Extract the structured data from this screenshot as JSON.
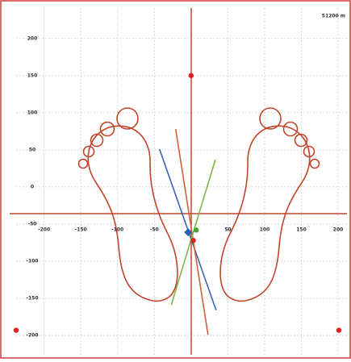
{
  "chart_data": {
    "type": "scatter",
    "corner_label": "51200 m",
    "xlim": [
      -238,
      212
    ],
    "ylim": [
      -226,
      241
    ],
    "xticks": [
      -200,
      -150,
      -100,
      -50,
      50,
      100,
      150,
      200
    ],
    "yticks": [
      200,
      150,
      100,
      50,
      0,
      -50,
      -100,
      -150,
      -200
    ],
    "grid": true,
    "series": [
      {
        "marker": "line",
        "color": "#3a66b5",
        "x": [
          -43,
          34
        ],
        "values": [
          51,
          -166
        ]
      },
      {
        "marker": "line",
        "color": "#d0603a",
        "x": [
          -21,
          23
        ],
        "values": [
          78,
          -199
        ]
      },
      {
        "marker": "line",
        "color": "#7ab648",
        "x": [
          33,
          -27
        ],
        "values": [
          37,
          -159
        ]
      },
      {
        "marker": "dot",
        "color": "#e02020",
        "x": [
          0,
          -238,
          201,
          3
        ],
        "values": [
          150,
          -193,
          -193,
          -72
        ]
      },
      {
        "marker": "diamond",
        "color": "#2f5faa",
        "x": [
          -4
        ],
        "values": [
          -61
        ]
      },
      {
        "marker": "dot",
        "color": "#4aa23a",
        "x": [
          7
        ],
        "values": [
          -58
        ]
      }
    ]
  }
}
